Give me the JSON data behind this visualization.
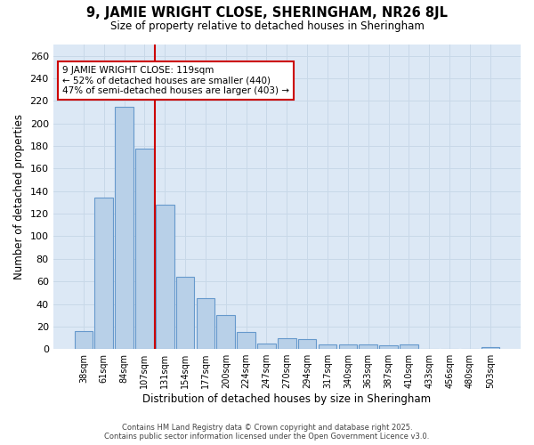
{
  "title_line1": "9, JAMIE WRIGHT CLOSE, SHERINGHAM, NR26 8JL",
  "title_line2": "Size of property relative to detached houses in Sheringham",
  "xlabel": "Distribution of detached houses by size in Sheringham",
  "ylabel": "Number of detached properties",
  "categories": [
    "38sqm",
    "61sqm",
    "84sqm",
    "107sqm",
    "131sqm",
    "154sqm",
    "177sqm",
    "200sqm",
    "224sqm",
    "247sqm",
    "270sqm",
    "294sqm",
    "317sqm",
    "340sqm",
    "363sqm",
    "387sqm",
    "410sqm",
    "433sqm",
    "456sqm",
    "480sqm",
    "503sqm"
  ],
  "values": [
    16,
    134,
    215,
    178,
    128,
    64,
    45,
    30,
    15,
    5,
    10,
    9,
    4,
    4,
    4,
    3,
    4,
    0,
    0,
    0,
    2
  ],
  "bar_color": "#b8d0e8",
  "bar_edge_color": "#6699cc",
  "vline_x": 3.5,
  "vline_color": "#cc0000",
  "annotation_title": "9 JAMIE WRIGHT CLOSE: 119sqm",
  "annotation_line2": "← 52% of detached houses are smaller (440)",
  "annotation_line3": "47% of semi-detached houses are larger (403) →",
  "annotation_box_color": "#cc0000",
  "ylim": [
    0,
    270
  ],
  "yticks": [
    0,
    20,
    40,
    60,
    80,
    100,
    120,
    140,
    160,
    180,
    200,
    220,
    240,
    260
  ],
  "grid_color": "#c8d8e8",
  "plot_bg_color": "#dce8f5",
  "fig_bg_color": "#ffffff",
  "footer_line1": "Contains HM Land Registry data © Crown copyright and database right 2025.",
  "footer_line2": "Contains public sector information licensed under the Open Government Licence v3.0."
}
